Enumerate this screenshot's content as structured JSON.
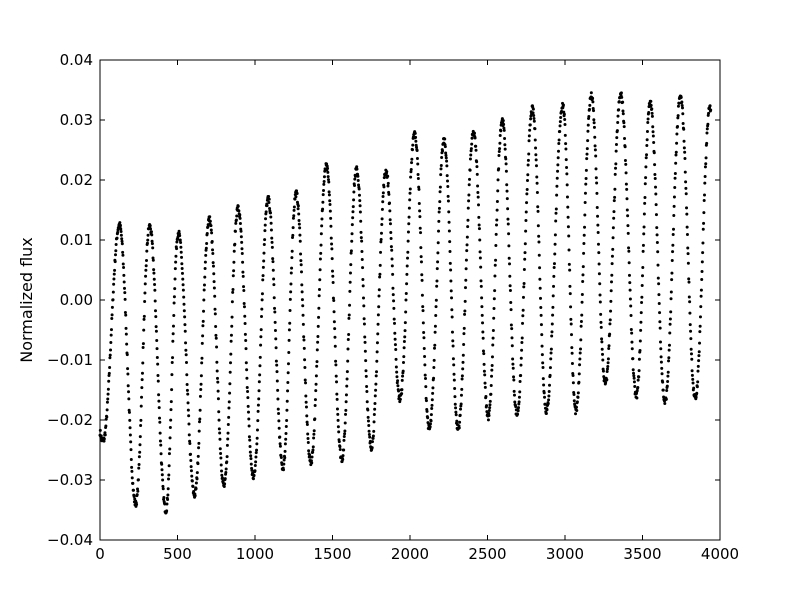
{
  "chart_data": {
    "type": "scatter",
    "title": "",
    "xlabel": "",
    "ylabel": "Normalized flux",
    "xlim": [
      0,
      4000
    ],
    "ylim": [
      -0.04,
      0.04
    ],
    "x_ticks": [
      0,
      500,
      1000,
      1500,
      2000,
      2500,
      3000,
      3500,
      4000
    ],
    "x_tick_labels": [
      "0",
      "500",
      "1000",
      "1500",
      "2000",
      "2500",
      "3000",
      "3500",
      "4000"
    ],
    "y_ticks": [
      -0.04,
      -0.03,
      -0.02,
      -0.01,
      0.0,
      0.01,
      0.02,
      0.03,
      0.04
    ],
    "y_tick_labels": [
      "−0.04",
      "−0.03",
      "−0.02",
      "−0.01",
      "0.00",
      "0.01",
      "0.02",
      "0.03",
      "0.04"
    ],
    "grid": false,
    "marker_color": "#000000",
    "x_range_of_points": [
      0,
      3940
    ],
    "cycles": [
      {
        "peak_x": 125,
        "peak": 0.0125,
        "trough_x": 20,
        "trough": -0.0235
      },
      {
        "peak_x": 320,
        "peak": 0.0123,
        "trough_x": 230,
        "trough": -0.034
      },
      {
        "peak_x": 505,
        "peak": 0.0112,
        "trough_x": 425,
        "trough": -0.035
      },
      {
        "peak_x": 705,
        "peak": 0.0135,
        "trough_x": 610,
        "trough": -0.0325
      },
      {
        "peak_x": 890,
        "peak": 0.0153,
        "trough_x": 800,
        "trough": -0.031
      },
      {
        "peak_x": 1085,
        "peak": 0.0168,
        "trough_x": 990,
        "trough": -0.0295
      },
      {
        "peak_x": 1265,
        "peak": 0.0178,
        "trough_x": 1180,
        "trough": -0.028
      },
      {
        "peak_x": 1460,
        "peak": 0.0222,
        "trough_x": 1360,
        "trough": -0.027
      },
      {
        "peak_x": 1655,
        "peak": 0.0217,
        "trough_x": 1560,
        "trough": -0.0265
      },
      {
        "peak_x": 1845,
        "peak": 0.0215,
        "trough_x": 1750,
        "trough": -0.0245
      },
      {
        "peak_x": 2030,
        "peak": 0.0277,
        "trough_x": 1935,
        "trough": -0.0165
      },
      {
        "peak_x": 2220,
        "peak": 0.0265,
        "trough_x": 2125,
        "trough": -0.0215
      },
      {
        "peak_x": 2410,
        "peak": 0.0278,
        "trough_x": 2310,
        "trough": -0.0215
      },
      {
        "peak_x": 2595,
        "peak": 0.03,
        "trough_x": 2505,
        "trough": -0.0195
      },
      {
        "peak_x": 2790,
        "peak": 0.0318,
        "trough_x": 2690,
        "trough": -0.019
      },
      {
        "peak_x": 2985,
        "peak": 0.0325,
        "trough_x": 2880,
        "trough": -0.0185
      },
      {
        "peak_x": 3170,
        "peak": 0.034,
        "trough_x": 3070,
        "trough": -0.0185
      },
      {
        "peak_x": 3360,
        "peak": 0.0342,
        "trough_x": 3260,
        "trough": -0.014
      },
      {
        "peak_x": 3550,
        "peak": 0.0328,
        "trough_x": 3460,
        "trough": -0.016
      },
      {
        "peak_x": 3745,
        "peak": 0.0338,
        "trough_x": 3645,
        "trough": -0.017
      },
      {
        "peak_x": 3935,
        "peak": 0.032,
        "trough_x": 3840,
        "trough": -0.0165
      }
    ]
  }
}
